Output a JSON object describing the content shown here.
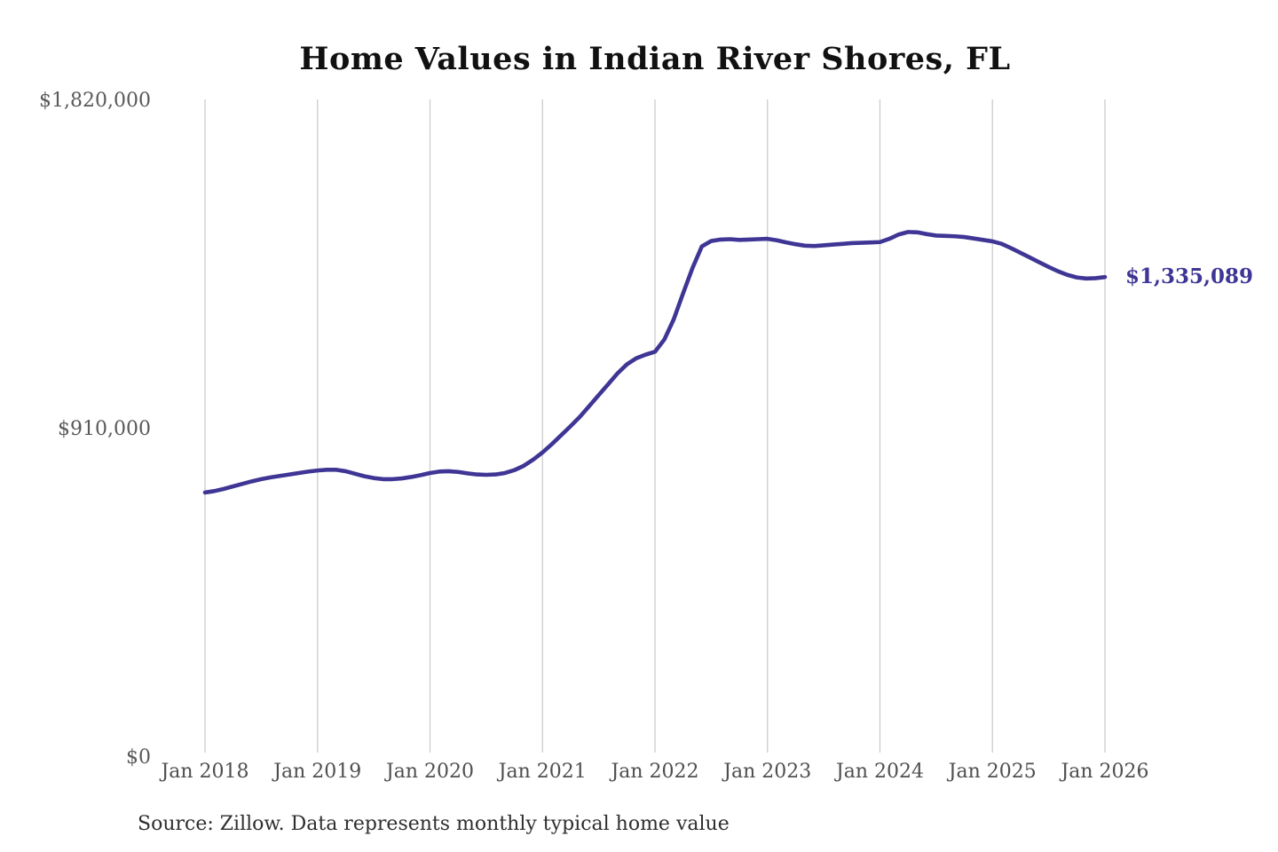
{
  "title": "Home Values in Indian River Shores, FL",
  "source_note": "Source: Zillow. Data represents monthly typical home value",
  "end_label": "$1,335,089",
  "colors": {
    "line": "#3e3595",
    "grid": "#cccccc",
    "end_label": "#3e3595"
  },
  "chart_data": {
    "type": "line",
    "title": "Home Values in Indian River Shores, FL",
    "xlabel": "",
    "ylabel": "",
    "interval": "monthly",
    "x_start": "Jan 2018",
    "x_end": "Jan 2026",
    "x_tick_labels": [
      "Jan 2018",
      "Jan 2019",
      "Jan 2020",
      "Jan 2021",
      "Jan 2022",
      "Jan 2023",
      "Jan 2024",
      "Jan 2025",
      "Jan 2026"
    ],
    "y_ticks": [
      0,
      910000,
      1820000
    ],
    "y_tick_labels": [
      "$0",
      "$910,000",
      "$1,820,000"
    ],
    "ylim": [
      0,
      1820000
    ],
    "grid": "vertical-only",
    "legend": "none",
    "final_value": 1335089,
    "final_value_label": "$1,335,089",
    "series": [
      {
        "name": "Monthly typical home value",
        "values": [
          738000,
          742000,
          748000,
          755000,
          762000,
          769000,
          775000,
          780000,
          784000,
          788000,
          792000,
          796000,
          799000,
          801000,
          801000,
          797000,
          790000,
          783000,
          778000,
          775000,
          775000,
          777000,
          781000,
          786000,
          792000,
          796000,
          797000,
          795000,
          791000,
          788000,
          787000,
          788000,
          792000,
          800000,
          812000,
          829000,
          849000,
          872000,
          897000,
          922000,
          948000,
          978000,
          1008000,
          1038000,
          1068000,
          1093000,
          1110000,
          1120000,
          1128000,
          1162000,
          1218000,
          1290000,
          1360000,
          1420000,
          1435000,
          1439000,
          1440000,
          1438000,
          1439000,
          1440000,
          1441000,
          1437000,
          1431000,
          1426000,
          1422000,
          1421000,
          1423000,
          1425000,
          1427000,
          1429000,
          1430000,
          1431000,
          1432000,
          1441000,
          1453000,
          1460000,
          1459000,
          1454000,
          1450000,
          1449000,
          1448000,
          1446000,
          1442000,
          1438000,
          1434000,
          1427000,
          1415000,
          1402000,
          1389000,
          1376000,
          1363000,
          1351000,
          1341000,
          1334000,
          1331000,
          1332000,
          1335089
        ]
      }
    ]
  }
}
